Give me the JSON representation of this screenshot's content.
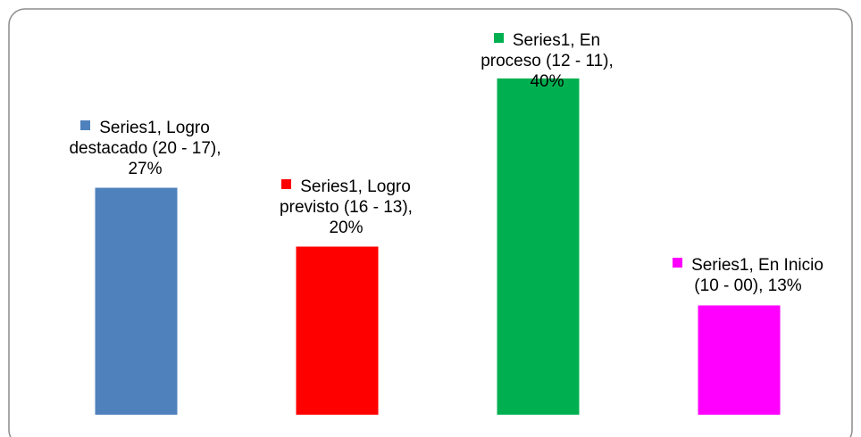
{
  "chart_data": {
    "type": "bar",
    "values": [
      27,
      20,
      40,
      13
    ],
    "value_labels": [
      "Series1, Logro destacado (20 - 17), 27%",
      "Series1, Logro previsto (16 - 13), 20%",
      "Series1, En proceso (12 - 11), 40%",
      "Series1, En Inicio (10 - 00), 13%"
    ],
    "colors": [
      "#4f81bd",
      "#ff0000",
      "#00b050",
      "#ff00ff"
    ],
    "ylim": [
      0,
      40
    ]
  }
}
